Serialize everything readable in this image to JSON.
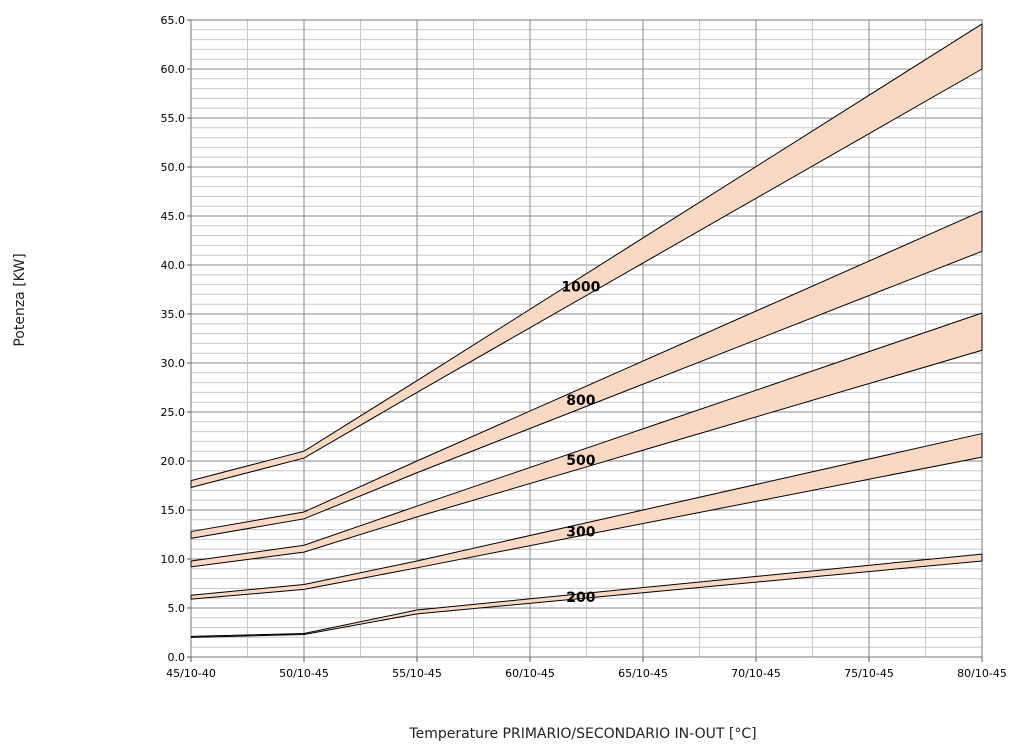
{
  "chart_data": {
    "type": "area",
    "x": [
      "45/10-40",
      "50/10-45",
      "55/10-45",
      "60/10-45",
      "65/10-45",
      "70/10-45",
      "75/10-45",
      "80/10-45"
    ],
    "xlabel": "Temperature PRIMARIO/SECONDARIO IN-OUT  [°C]",
    "ylabel": "Potenza [KW]",
    "ylim": [
      0,
      65
    ],
    "y_ticks": [
      "0.0",
      "5.0",
      "10.0",
      "15.0",
      "20.0",
      "25.0",
      "30.0",
      "35.0",
      "40.0",
      "45.0",
      "50.0",
      "55.0",
      "60.0",
      "65.0"
    ],
    "grid": true,
    "band_color": "#f9d9c4",
    "series": [
      {
        "name": "1000",
        "x_index": [
          0,
          1,
          2,
          7
        ],
        "upper": [
          18.0,
          21.0,
          28.2,
          64.6
        ],
        "lower": [
          17.3,
          20.3,
          27.0,
          60.0
        ]
      },
      {
        "name": "800",
        "x_index": [
          0,
          1,
          2,
          7
        ],
        "upper": [
          12.8,
          14.8,
          20.0,
          45.5
        ],
        "lower": [
          12.1,
          14.1,
          18.8,
          41.4
        ]
      },
      {
        "name": "500",
        "x_index": [
          0,
          1,
          2,
          7
        ],
        "upper": [
          9.8,
          11.4,
          15.4,
          35.1
        ],
        "lower": [
          9.2,
          10.7,
          14.3,
          31.3
        ]
      },
      {
        "name": "300",
        "x_index": [
          0,
          1,
          2,
          7
        ],
        "upper": [
          6.3,
          7.4,
          9.8,
          22.8
        ],
        "lower": [
          5.9,
          6.9,
          9.1,
          20.4
        ]
      },
      {
        "name": "200",
        "x_index": [
          0,
          1,
          2,
          7
        ],
        "upper": [
          2.1,
          2.4,
          4.8,
          10.5
        ],
        "lower": [
          2.0,
          2.3,
          4.4,
          9.8
        ]
      }
    ],
    "label_positions": [
      {
        "series": "1000",
        "x_index": 3.45,
        "y": 37.8
      },
      {
        "series": "800",
        "x_index": 3.45,
        "y": 26.2
      },
      {
        "series": "500",
        "x_index": 3.45,
        "y": 20.1
      },
      {
        "series": "300",
        "x_index": 3.45,
        "y": 12.8
      },
      {
        "series": "200",
        "x_index": 3.45,
        "y": 6.1
      }
    ]
  }
}
